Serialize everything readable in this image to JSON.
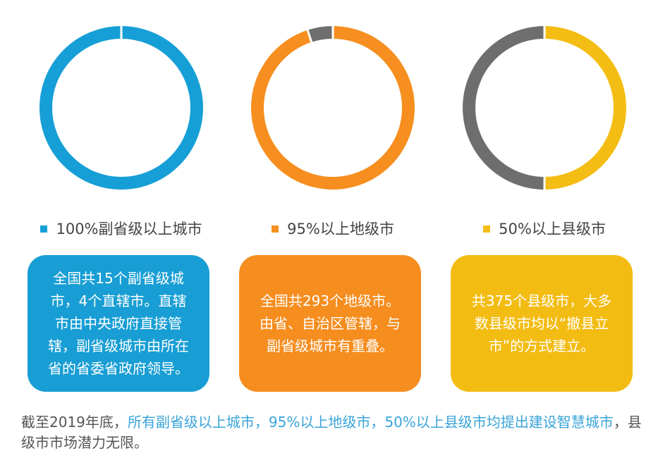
{
  "chart_data": [
    {
      "type": "pie",
      "variant": "donut",
      "legend_label": "100%副省级以上城市",
      "slices": [
        {
          "label": "副省级以上城市",
          "value": 100,
          "color": "#169fd6"
        }
      ],
      "card_text": "全国共15个副省级城市，4个直辖市。直辖市由中央政府直接管辖，副省级城市由所在省的省委省政府领导。",
      "card_color": "#189ed4"
    },
    {
      "type": "pie",
      "variant": "donut",
      "legend_label": "95%以上地级市",
      "slices": [
        {
          "label": "地级市",
          "value": 95,
          "color": "#f68f1f"
        },
        {
          "label": "",
          "value": 5,
          "color": "#6e6e6e"
        }
      ],
      "card_text": "全国共293个地级市。由省、自治区管辖，与副省级城市有重叠。",
      "card_color": "#f58d1f"
    },
    {
      "type": "pie",
      "variant": "donut",
      "legend_label": "50%以上县级市",
      "slices": [
        {
          "label": "县级市",
          "value": 50,
          "color": "#f4bd13"
        },
        {
          "label": "",
          "value": 50,
          "color": "#6e6e6e"
        }
      ],
      "card_text": "共375个县级市，大多数县级市均以“撤县立市”的方式建立。",
      "card_color": "#f3bc13"
    }
  ],
  "footer": {
    "part1": "截至2019年底，",
    "part2": "所有副省级以上城市，95%以上地级市，50%以上县级市均提出建设智慧城市",
    "part3": "，县级市市场潜力无限。"
  }
}
